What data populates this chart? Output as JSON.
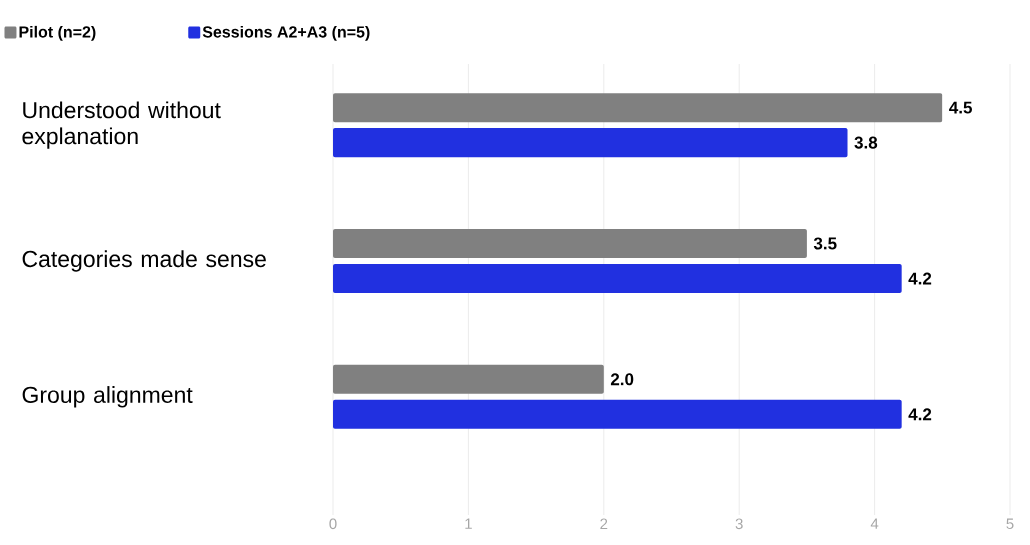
{
  "chart_data": {
    "type": "bar",
    "orientation": "horizontal",
    "categories": [
      "Understood without explanation",
      "Categories made sense",
      "Group alignment"
    ],
    "series": [
      {
        "name": "Pilot (n=2)",
        "color": "#808080",
        "values": [
          4.5,
          3.5,
          2.0
        ],
        "value_labels": [
          "4.5",
          "3.5",
          "2.0"
        ]
      },
      {
        "name": "Sessions A2+A3 (n=5)",
        "color": "#2130e0",
        "values": [
          3.8,
          4.2,
          4.2
        ],
        "value_labels": [
          "3.8",
          "4.2",
          "4.2"
        ]
      }
    ],
    "xlim": [
      0,
      5
    ],
    "xticks": [
      0,
      1,
      2,
      3,
      4,
      5
    ],
    "grid": "x",
    "legend": "top left"
  }
}
